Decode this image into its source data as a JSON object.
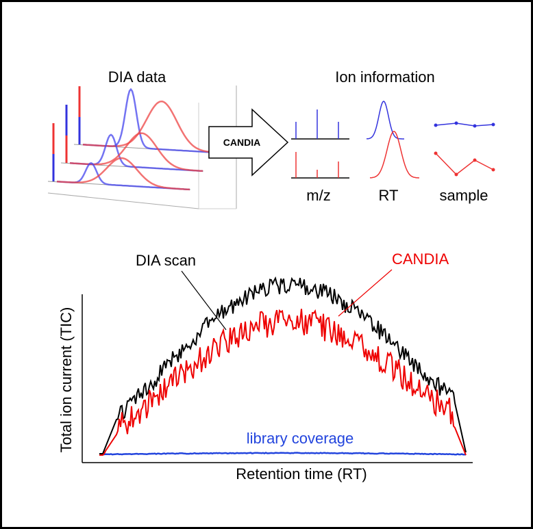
{
  "top_left": {
    "title": "DIA data"
  },
  "arrow": {
    "label": "CANDIA"
  },
  "top_right": {
    "title": "Ion information",
    "labels": [
      "m/z",
      "RT",
      "sample"
    ]
  },
  "bottom": {
    "annotation_scan": "DIA scan",
    "annotation_candia": "CANDIA",
    "library_label": "library coverage",
    "y_axis_label": "Total ion current (TIC)",
    "x_axis_label": "Retention time (RT)"
  }
}
